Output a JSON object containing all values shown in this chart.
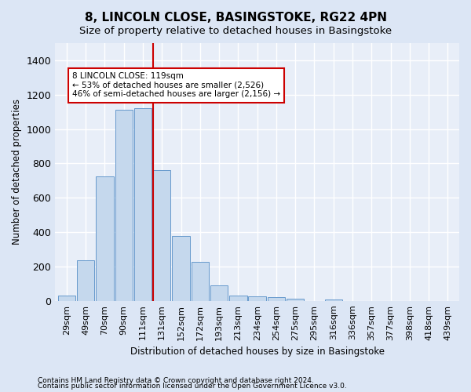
{
  "title": "8, LINCOLN CLOSE, BASINGSTOKE, RG22 4PN",
  "subtitle": "Size of property relative to detached houses in Basingstoke",
  "xlabel": "Distribution of detached houses by size in Basingstoke",
  "ylabel": "Number of detached properties",
  "footnote1": "Contains HM Land Registry data © Crown copyright and database right 2024.",
  "footnote2": "Contains public sector information licensed under the Open Government Licence v3.0.",
  "bar_labels": [
    "29sqm",
    "49sqm",
    "70sqm",
    "90sqm",
    "111sqm",
    "131sqm",
    "152sqm",
    "172sqm",
    "193sqm",
    "213sqm",
    "234sqm",
    "254sqm",
    "275sqm",
    "295sqm",
    "316sqm",
    "336sqm",
    "357sqm",
    "377sqm",
    "398sqm",
    "418sqm",
    "439sqm"
  ],
  "bar_values": [
    30,
    235,
    725,
    1110,
    1120,
    760,
    380,
    225,
    90,
    30,
    25,
    20,
    15,
    0,
    10,
    0,
    0,
    0,
    0,
    0,
    0
  ],
  "bar_color": "#c5d8ed",
  "bar_edgecolor": "#6699cc",
  "vline_x": 4.55,
  "vline_color": "#cc0000",
  "annotation_text": "8 LINCOLN CLOSE: 119sqm\n← 53% of detached houses are smaller (2,526)\n46% of semi-detached houses are larger (2,156) →",
  "annotation_box_color": "#cc0000",
  "ylim": [
    0,
    1500
  ],
  "yticks": [
    0,
    200,
    400,
    600,
    800,
    1000,
    1200,
    1400
  ],
  "bg_color": "#dce6f5",
  "plot_bg_color": "#e8eef8",
  "grid_color": "#ffffff",
  "title_fontsize": 11,
  "subtitle_fontsize": 9.5,
  "axis_label_fontsize": 8.5,
  "tick_fontsize": 8,
  "footnote_fontsize": 6.5
}
